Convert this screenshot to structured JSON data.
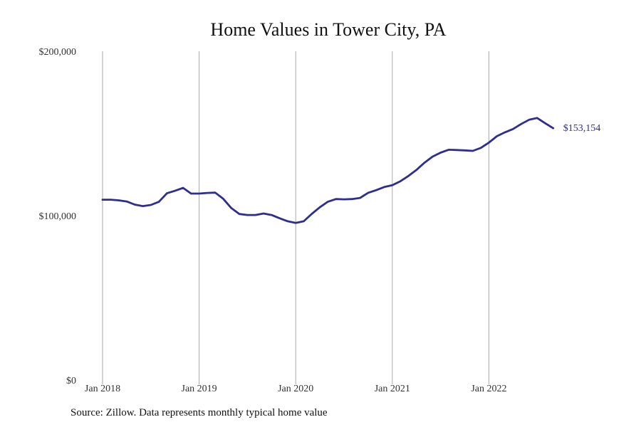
{
  "chart_data": {
    "type": "line",
    "title": "Home Values in Tower City, PA",
    "source": "Source: Zillow. Data represents monthly typical home value",
    "ylim": [
      0,
      200000
    ],
    "y_ticks": [
      "$0",
      "$100,000",
      "$200,000"
    ],
    "y_tick_values": [
      0,
      100000,
      200000
    ],
    "x_ticks": [
      "Jan 2018",
      "Jan 2019",
      "Jan 2020",
      "Jan 2021",
      "Jan 2022"
    ],
    "x_tick_dates": [
      "2018-01",
      "2019-01",
      "2020-01",
      "2021-01",
      "2022-01"
    ],
    "grid": "vertical",
    "line_color": "#2e2e8f",
    "end_label": "$153,154",
    "series": [
      {
        "x": [
          "2018-01",
          "2018-02",
          "2018-03",
          "2018-04",
          "2018-05",
          "2018-06",
          "2018-07",
          "2018-08",
          "2018-09",
          "2018-10",
          "2018-11",
          "2018-12",
          "2019-01",
          "2019-02",
          "2019-03",
          "2019-04",
          "2019-05",
          "2019-06",
          "2019-07",
          "2019-08",
          "2019-09",
          "2019-10",
          "2019-11",
          "2019-12",
          "2020-01",
          "2020-02",
          "2020-03",
          "2020-04",
          "2020-05",
          "2020-06",
          "2020-07",
          "2020-08",
          "2020-09",
          "2020-10",
          "2020-11",
          "2020-12",
          "2021-01",
          "2021-02",
          "2021-03",
          "2021-04",
          "2021-05",
          "2021-06",
          "2021-07",
          "2021-08",
          "2021-09",
          "2021-10",
          "2021-11",
          "2021-12",
          "2022-01",
          "2022-02",
          "2022-03",
          "2022-04",
          "2022-05",
          "2022-06",
          "2022-07",
          "2022-08",
          "2022-09"
        ],
        "values": [
          109700,
          109700,
          109300,
          108600,
          106700,
          105800,
          106500,
          108400,
          113600,
          115100,
          116900,
          113400,
          113400,
          113800,
          114000,
          110200,
          104600,
          101000,
          100400,
          100400,
          101300,
          100400,
          98400,
          96600,
          95600,
          96600,
          101100,
          105100,
          108500,
          110100,
          109900,
          110100,
          110800,
          113900,
          115500,
          117400,
          118500,
          120900,
          124100,
          127800,
          132200,
          135900,
          138300,
          140100,
          139900,
          139700,
          139400,
          141200,
          144400,
          148300,
          150700,
          152700,
          155700,
          158300,
          159400,
          156200,
          153154
        ]
      }
    ]
  }
}
